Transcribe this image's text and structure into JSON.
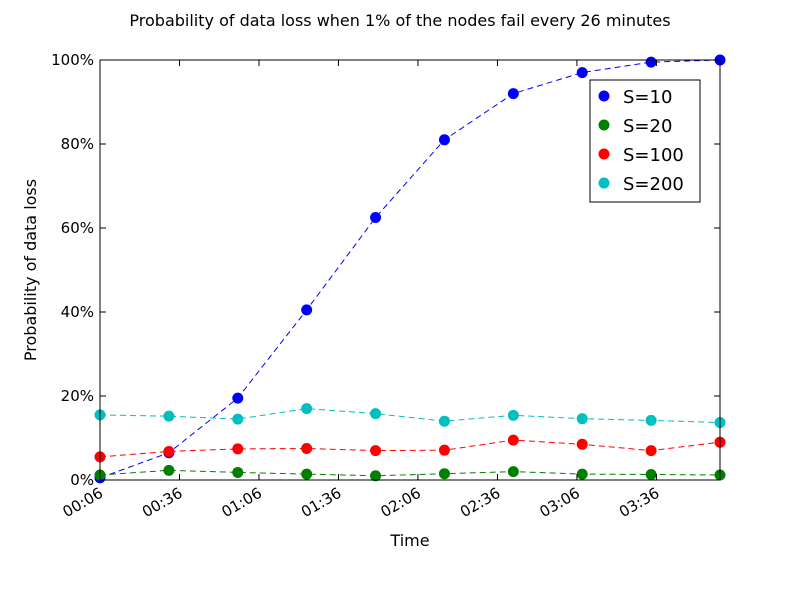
{
  "chart_data": {
    "type": "line",
    "title": "Probability of data loss when 1% of the nodes fail every 26 minutes",
    "xlabel": "Time",
    "ylabel": "Probability of data loss",
    "x": [
      "00:06",
      "00:32",
      "00:58",
      "01:24",
      "01:50",
      "02:16",
      "02:42",
      "03:08",
      "03:34",
      "04:00"
    ],
    "x_minutes": [
      6,
      32,
      58,
      84,
      110,
      136,
      162,
      188,
      214,
      240
    ],
    "xticks": [
      6,
      36,
      66,
      96,
      126,
      156,
      186,
      216
    ],
    "xtick_labels": [
      "00:06",
      "00:36",
      "01:06",
      "01:36",
      "02:06",
      "02:36",
      "03:06",
      "03:36"
    ],
    "xlim": [
      6,
      240
    ],
    "ylim": [
      0,
      100
    ],
    "yticks": [
      0,
      20,
      40,
      60,
      80,
      100
    ],
    "ytick_labels": [
      "0%",
      "20%",
      "40%",
      "60%",
      "80%",
      "100%"
    ],
    "grid": false,
    "legend_position": "top-right",
    "series": [
      {
        "name": "S=10",
        "color": "#0000ff",
        "values": [
          0.5,
          6.5,
          19.5,
          40.5,
          62.5,
          81,
          92,
          97,
          99.5,
          100
        ]
      },
      {
        "name": "S=20",
        "color": "#008000",
        "values": [
          1.2,
          2.3,
          1.8,
          1.4,
          1.0,
          1.5,
          2.0,
          1.4,
          1.3,
          1.2
        ]
      },
      {
        "name": "S=100",
        "color": "#ff0000",
        "values": [
          5.5,
          6.8,
          7.4,
          7.5,
          7.0,
          7.1,
          9.5,
          8.5,
          7.0,
          9.0
        ]
      },
      {
        "name": "S=200",
        "color": "#00bfbf",
        "values": [
          15.5,
          15.2,
          14.5,
          17.0,
          15.8,
          14.0,
          15.4,
          14.6,
          14.2,
          13.7
        ]
      }
    ]
  }
}
